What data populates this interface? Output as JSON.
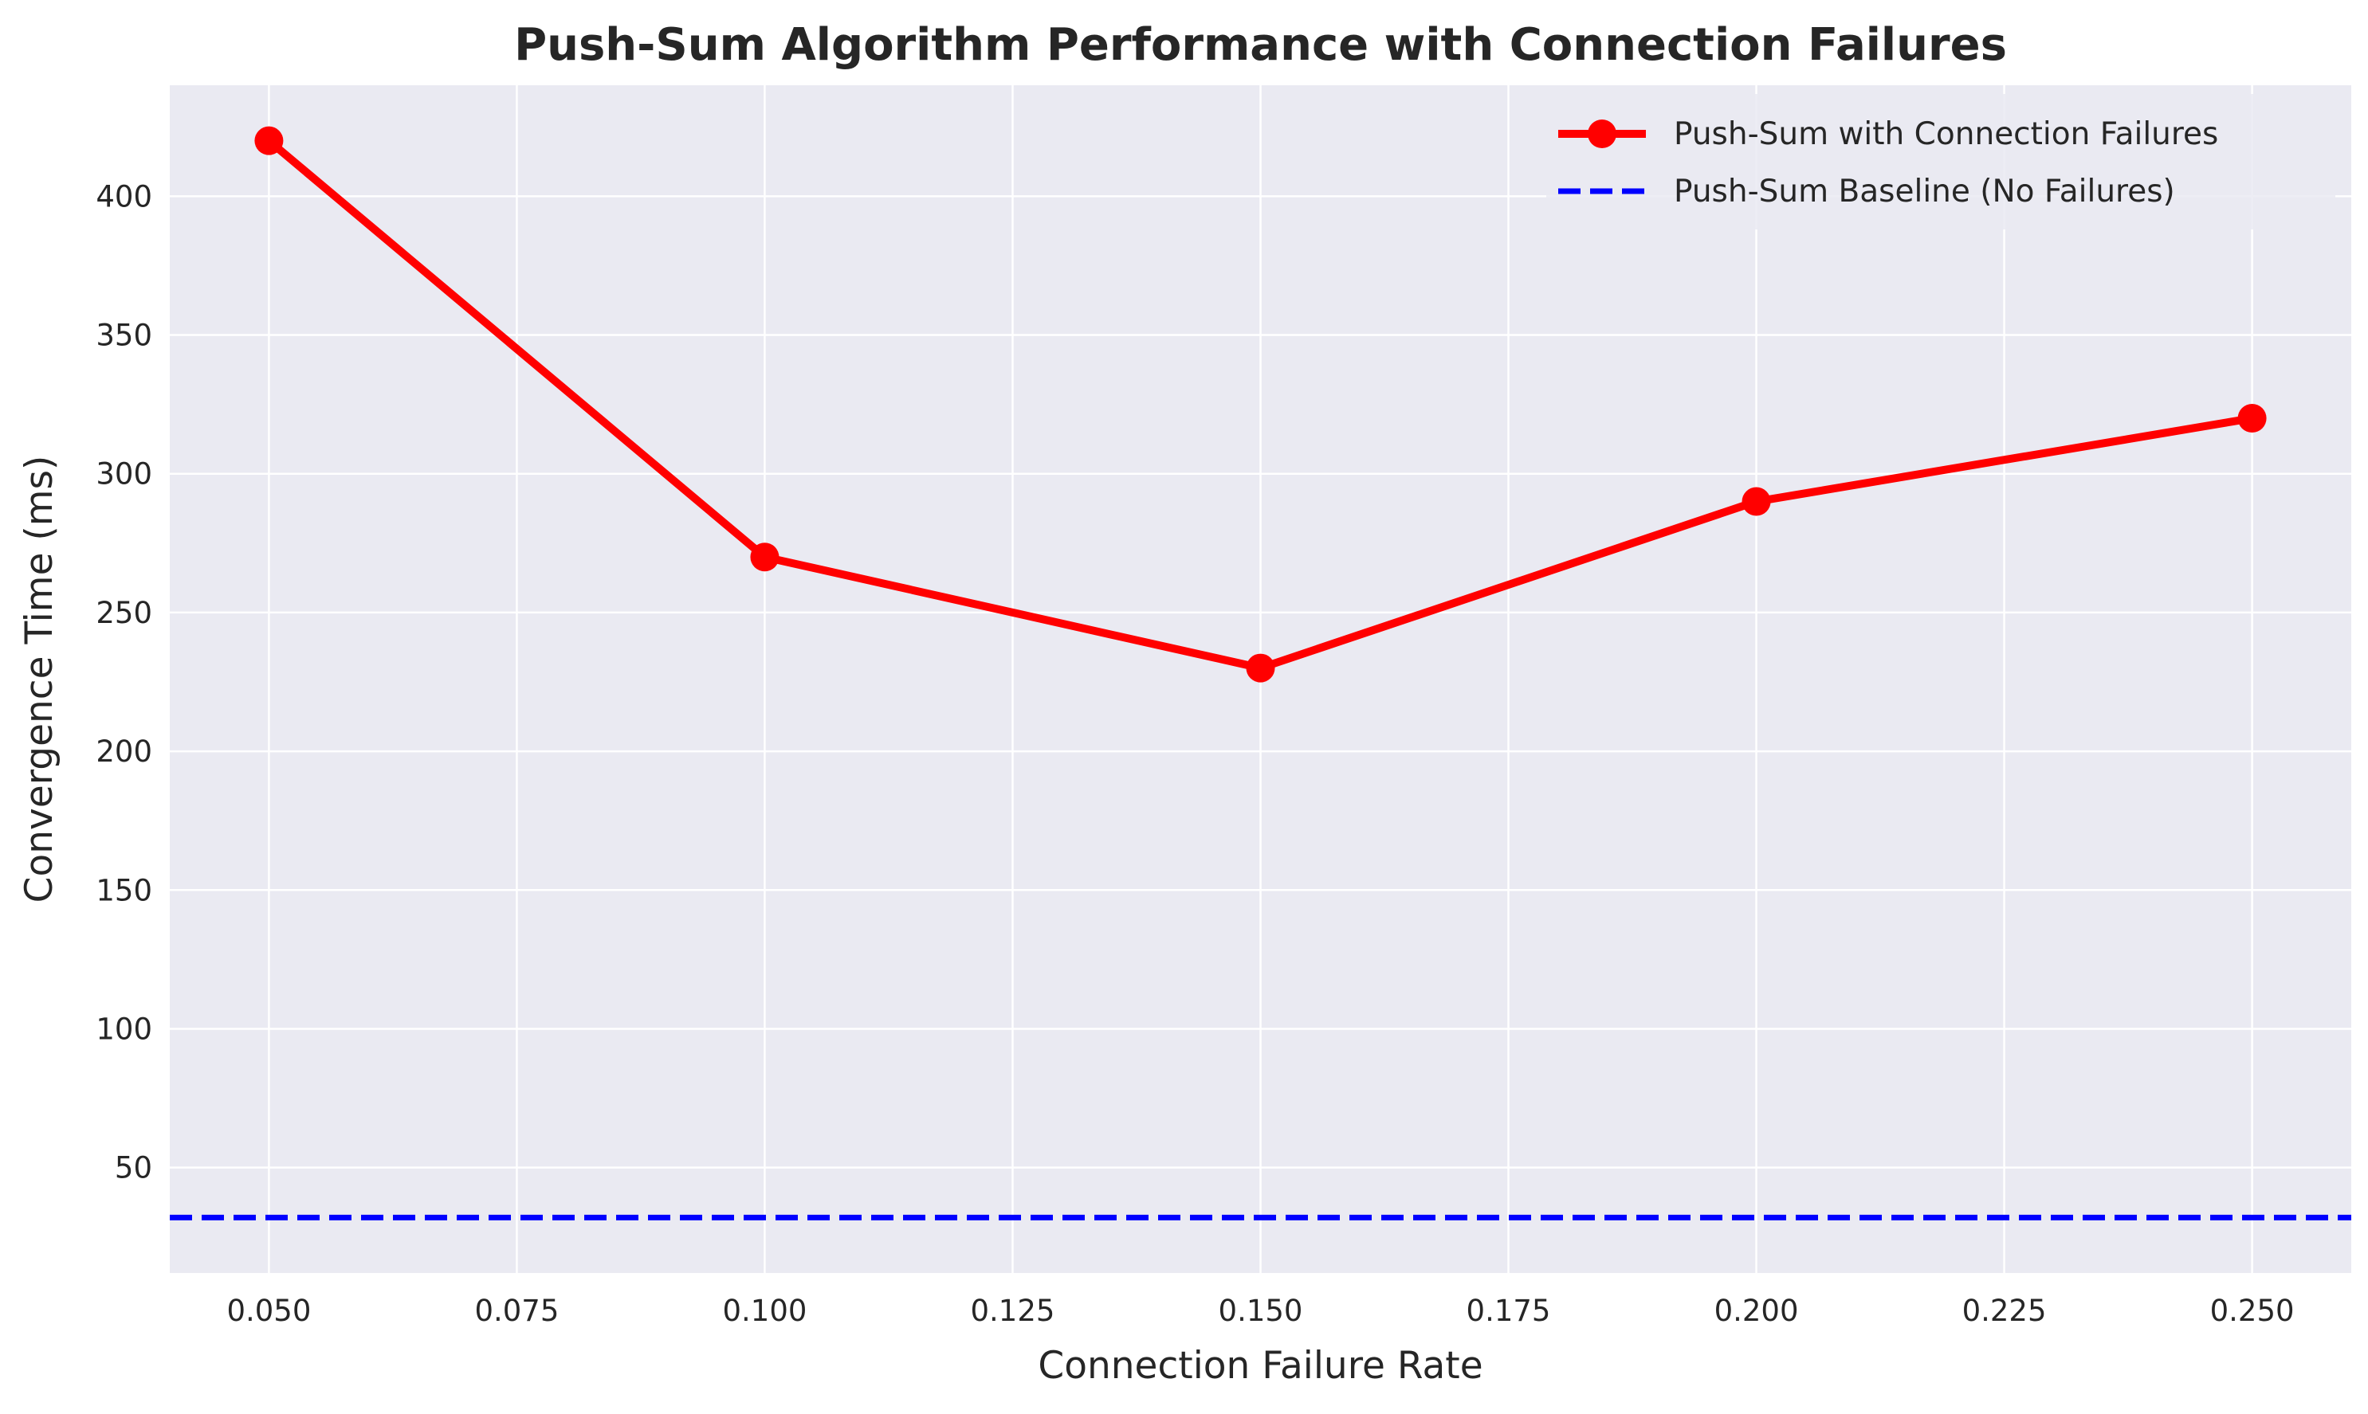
{
  "chart_data": {
    "type": "line",
    "title": "Push-Sum Algorithm Performance with Connection Failures",
    "xlabel": "Connection Failure Rate",
    "ylabel": "Convergence Time (ms)",
    "x": [
      0.05,
      0.1,
      0.15,
      0.2,
      0.25
    ],
    "x_tick_labels": [
      "0.050",
      "0.075",
      "0.100",
      "0.125",
      "0.150",
      "0.175",
      "0.200",
      "0.225",
      "0.250"
    ],
    "x_ticks": [
      0.05,
      0.075,
      0.1,
      0.125,
      0.15,
      0.175,
      0.2,
      0.225,
      0.25
    ],
    "y_tick_labels": [
      "50",
      "100",
      "150",
      "200",
      "250",
      "300",
      "350",
      "400"
    ],
    "y_ticks": [
      50,
      100,
      150,
      200,
      250,
      300,
      350,
      400
    ],
    "xlim": [
      0.04,
      0.26
    ],
    "ylim": [
      12,
      440
    ],
    "grid": true,
    "legend_position": "top-right",
    "series": [
      {
        "name": "Push-Sum with Connection Failures",
        "values": [
          420,
          270,
          230,
          290,
          320
        ],
        "color": "#ff0000",
        "style": "solid",
        "marker": "circle"
      },
      {
        "name": "Push-Sum Baseline (No Failures)",
        "type": "hline",
        "value": 32,
        "color": "#0000ff",
        "style": "dashed"
      }
    ],
    "background_color": "#eaeaf2",
    "grid_color": "#ffffff"
  }
}
